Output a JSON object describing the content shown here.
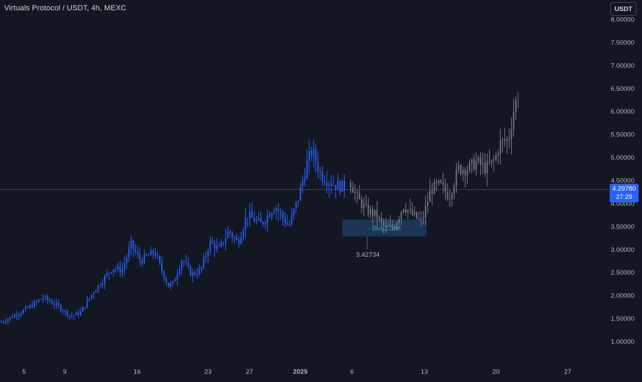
{
  "header": {
    "symbol_title": "Virtuals Protocol / USDT, 4h, MEXC",
    "currency_button": "USDT"
  },
  "last_price": {
    "value": "4.29780",
    "countdown": "27:29"
  },
  "colors": {
    "background": "#131722",
    "up_candle": "#2962ff",
    "projection_candle": "#787b86",
    "buy_zone_fill": "#1e3a5f",
    "buy_zone_text": "#26a69a",
    "axis_text": "#b2b5be"
  },
  "chart_data": {
    "type": "candlestick",
    "title": "",
    "y_axis": {
      "ticks": [
        "1.00000",
        "1.50000",
        "2.00000",
        "2.50000",
        "3.00000",
        "3.50000",
        "4.00000",
        "4.50000",
        "5.00000",
        "5.50000",
        "6.00000",
        "6.50000",
        "7.00000",
        "7.50000",
        "8.00000"
      ],
      "range": [
        0.75,
        8.05
      ]
    },
    "x_axis": {
      "ticks": [
        "5",
        "9",
        "16",
        "23",
        "27",
        "2025",
        "6",
        "13",
        "20",
        "27"
      ]
    },
    "series": [
      {
        "name": "",
        "style": "blue",
        "anchors": [
          [
            0,
            1.42
          ],
          [
            5,
            1.68
          ],
          [
            9,
            1.95
          ],
          [
            12,
            1.78
          ],
          [
            15,
            1.55
          ],
          [
            17,
            1.62
          ],
          [
            20,
            2.1
          ],
          [
            24,
            2.6
          ],
          [
            26,
            2.55
          ],
          [
            28,
            3.1
          ],
          [
            30,
            2.75
          ],
          [
            33,
            2.95
          ],
          [
            36,
            2.2
          ],
          [
            37,
            2.25
          ],
          [
            39,
            2.8
          ],
          [
            41,
            2.45
          ],
          [
            43,
            2.55
          ],
          [
            45,
            3.15
          ],
          [
            47,
            3.0
          ],
          [
            49,
            3.4
          ],
          [
            51,
            3.15
          ],
          [
            53,
            3.75
          ],
          [
            56,
            3.55
          ],
          [
            59,
            3.95
          ],
          [
            62,
            3.5
          ],
          [
            64,
            4.1
          ],
          [
            66,
            4.9
          ],
          [
            67,
            5.15
          ],
          [
            69,
            4.6
          ],
          [
            72,
            4.4
          ],
          [
            74,
            4.35
          ]
        ]
      },
      {
        "name": "",
        "style": "projection",
        "anchors": [
          [
            74.5,
            4.45
          ],
          [
            76,
            4.1
          ],
          [
            78,
            3.85
          ],
          [
            80,
            3.75
          ],
          [
            82,
            3.45
          ],
          [
            84,
            3.5
          ],
          [
            86,
            3.95
          ],
          [
            88,
            3.75
          ],
          [
            90,
            3.6
          ],
          [
            92,
            4.3
          ],
          [
            94,
            4.4
          ],
          [
            96,
            4.15
          ],
          [
            98,
            4.75
          ],
          [
            100,
            4.75
          ],
          [
            102,
            4.9
          ],
          [
            104,
            4.75
          ],
          [
            106,
            4.95
          ],
          [
            107,
            5.3
          ],
          [
            109,
            5.4
          ],
          [
            110,
            6.0
          ],
          [
            111,
            6.35
          ]
        ]
      }
    ],
    "annotations": {
      "buy_zone_label": "BuyZone",
      "buy_zone_range": [
        3.28,
        3.65
      ],
      "low_marker_value": "3.42734"
    }
  }
}
